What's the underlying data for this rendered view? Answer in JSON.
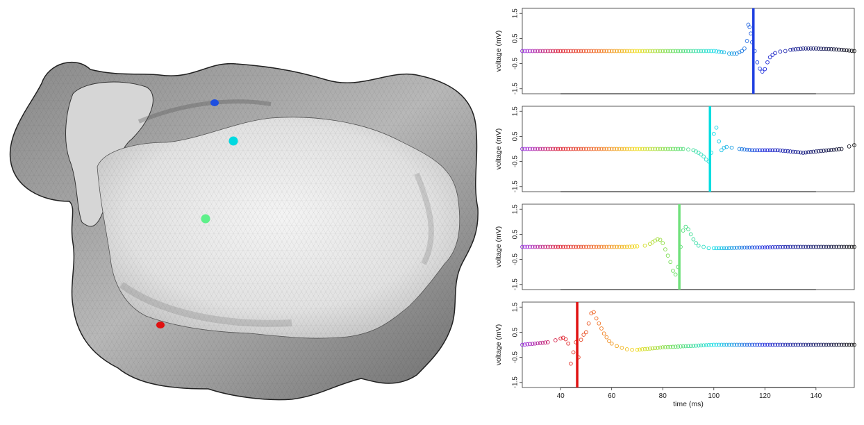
{
  "figure": {
    "mesh_markers": [
      {
        "id": "blue",
        "color": "#1e4fe0"
      },
      {
        "id": "cyan",
        "color": "#00d9e0"
      },
      {
        "id": "green",
        "color": "#5ef08a"
      },
      {
        "id": "red",
        "color": "#e01010"
      }
    ]
  },
  "chart_data": [
    {
      "type": "scatter",
      "xlabel": "",
      "ylabel": "voltage (mV)",
      "xlim": [
        25,
        155
      ],
      "ylim": [
        -1.7,
        1.7
      ],
      "yticks": [
        "1.5",
        "0.5",
        "-0.5",
        "-1.5"
      ],
      "ytick_values": [
        1.5,
        0.5,
        -0.5,
        -1.5
      ],
      "xticks": [],
      "marker_time": 115.5,
      "marker_color": "#1e3fe0",
      "series": [
        {
          "x": [
            25,
            100,
            104,
            106,
            107,
            108,
            109,
            110,
            111,
            112,
            113,
            113.5,
            114,
            114.5,
            115,
            116,
            117,
            118,
            119,
            120,
            121,
            122,
            123,
            124,
            126,
            128,
            130,
            135,
            140,
            145,
            150,
            155
          ],
          "y": [
            0,
            0,
            -0.05,
            -0.1,
            -0.1,
            -0.1,
            -0.1,
            -0.05,
            0,
            0.1,
            0.4,
            1.05,
            0.95,
            0.7,
            0.35,
            0,
            -0.45,
            -0.7,
            -0.82,
            -0.72,
            -0.45,
            -0.25,
            -0.15,
            -0.08,
            -0.02,
            0,
            0.05,
            0.1,
            0.1,
            0.08,
            0.05,
            0
          ]
        }
      ]
    },
    {
      "type": "scatter",
      "xlabel": "",
      "ylabel": "voltage (mV)",
      "xlim": [
        25,
        155
      ],
      "ylim": [
        -1.7,
        1.7
      ],
      "yticks": [
        "1.5",
        "0.5",
        "-0.5",
        "-1.5"
      ],
      "ytick_values": [
        1.5,
        0.5,
        -0.5,
        -1.5
      ],
      "xticks": [],
      "marker_time": 98.5,
      "marker_color": "#00dde0",
      "series": [
        {
          "x": [
            25,
            80,
            88,
            90,
            92,
            93,
            94,
            95,
            96,
            97,
            98,
            99,
            100,
            101,
            102,
            103,
            104,
            105,
            107,
            110,
            115,
            120,
            125,
            130,
            135,
            140,
            145,
            150,
            153,
            155
          ],
          "y": [
            0,
            0,
            0,
            -0.02,
            -0.05,
            -0.1,
            -0.15,
            -0.22,
            -0.3,
            -0.42,
            -0.5,
            -0.15,
            0.6,
            0.85,
            0.3,
            -0.05,
            0.05,
            0.08,
            0.05,
            0,
            -0.05,
            -0.05,
            -0.05,
            -0.1,
            -0.15,
            -0.1,
            -0.05,
            0,
            0.1,
            0.15
          ]
        }
      ]
    },
    {
      "type": "scatter",
      "xlabel": "",
      "ylabel": "voltage (mV)",
      "xlim": [
        25,
        155
      ],
      "ylim": [
        -1.7,
        1.7
      ],
      "yticks": [
        "1.5",
        "0.5",
        "-0.5",
        "-1.5"
      ],
      "ytick_values": [
        1.5,
        0.5,
        -0.5,
        -1.5
      ],
      "xticks": [],
      "marker_time": 86.5,
      "marker_color": "#6ee07a",
      "series": [
        {
          "x": [
            25,
            65,
            70,
            73,
            75,
            76,
            77,
            78,
            79,
            80,
            81,
            82,
            83,
            84,
            85,
            86,
            87,
            88,
            89,
            90,
            91,
            92,
            93,
            94,
            96,
            98,
            100,
            105,
            110,
            120,
            130,
            140,
            150,
            155
          ],
          "y": [
            0,
            0,
            0.02,
            0.05,
            0.12,
            0.18,
            0.25,
            0.3,
            0.28,
            0.15,
            -0.1,
            -0.35,
            -0.6,
            -0.95,
            -1.1,
            -0.8,
            0,
            0.65,
            0.8,
            0.7,
            0.5,
            0.3,
            0.15,
            0.05,
            0,
            -0.05,
            -0.05,
            -0.05,
            -0.03,
            -0.02,
            0,
            0,
            0,
            0
          ]
        }
      ]
    },
    {
      "type": "scatter",
      "xlabel": "time (ms)",
      "ylabel": "voltage (mV)",
      "xlim": [
        25,
        155
      ],
      "ylim": [
        -1.7,
        1.7
      ],
      "yticks": [
        "1.5",
        "0.5",
        "-0.5",
        "-1.5"
      ],
      "ytick_values": [
        1.5,
        0.5,
        -0.5,
        -1.5
      ],
      "xticks": [
        "40",
        "60",
        "80",
        "100",
        "120",
        "140"
      ],
      "xtick_values": [
        40,
        60,
        80,
        100,
        120,
        140
      ],
      "marker_time": 46.5,
      "marker_color": "#e01010",
      "series": [
        {
          "x": [
            25,
            30,
            35,
            38,
            40,
            41,
            42,
            43,
            44,
            45,
            46,
            47,
            48,
            49,
            50,
            51,
            52,
            53,
            54,
            55,
            56,
            57,
            58,
            59,
            60,
            62,
            64,
            66,
            68,
            70,
            75,
            80,
            90,
            100,
            110,
            120,
            130,
            140,
            150,
            155
          ],
          "y": [
            0,
            0.05,
            0.1,
            0.18,
            0.25,
            0.28,
            0.22,
            0.05,
            -0.75,
            -0.3,
            0.1,
            -0.5,
            0.2,
            0.4,
            0.5,
            0.85,
            1.25,
            1.3,
            1.05,
            0.85,
            0.65,
            0.45,
            0.3,
            0.15,
            0.05,
            -0.05,
            -0.12,
            -0.18,
            -0.2,
            -0.2,
            -0.15,
            -0.1,
            -0.05,
            0,
            0,
            0,
            0,
            0,
            0,
            0
          ]
        }
      ]
    }
  ]
}
